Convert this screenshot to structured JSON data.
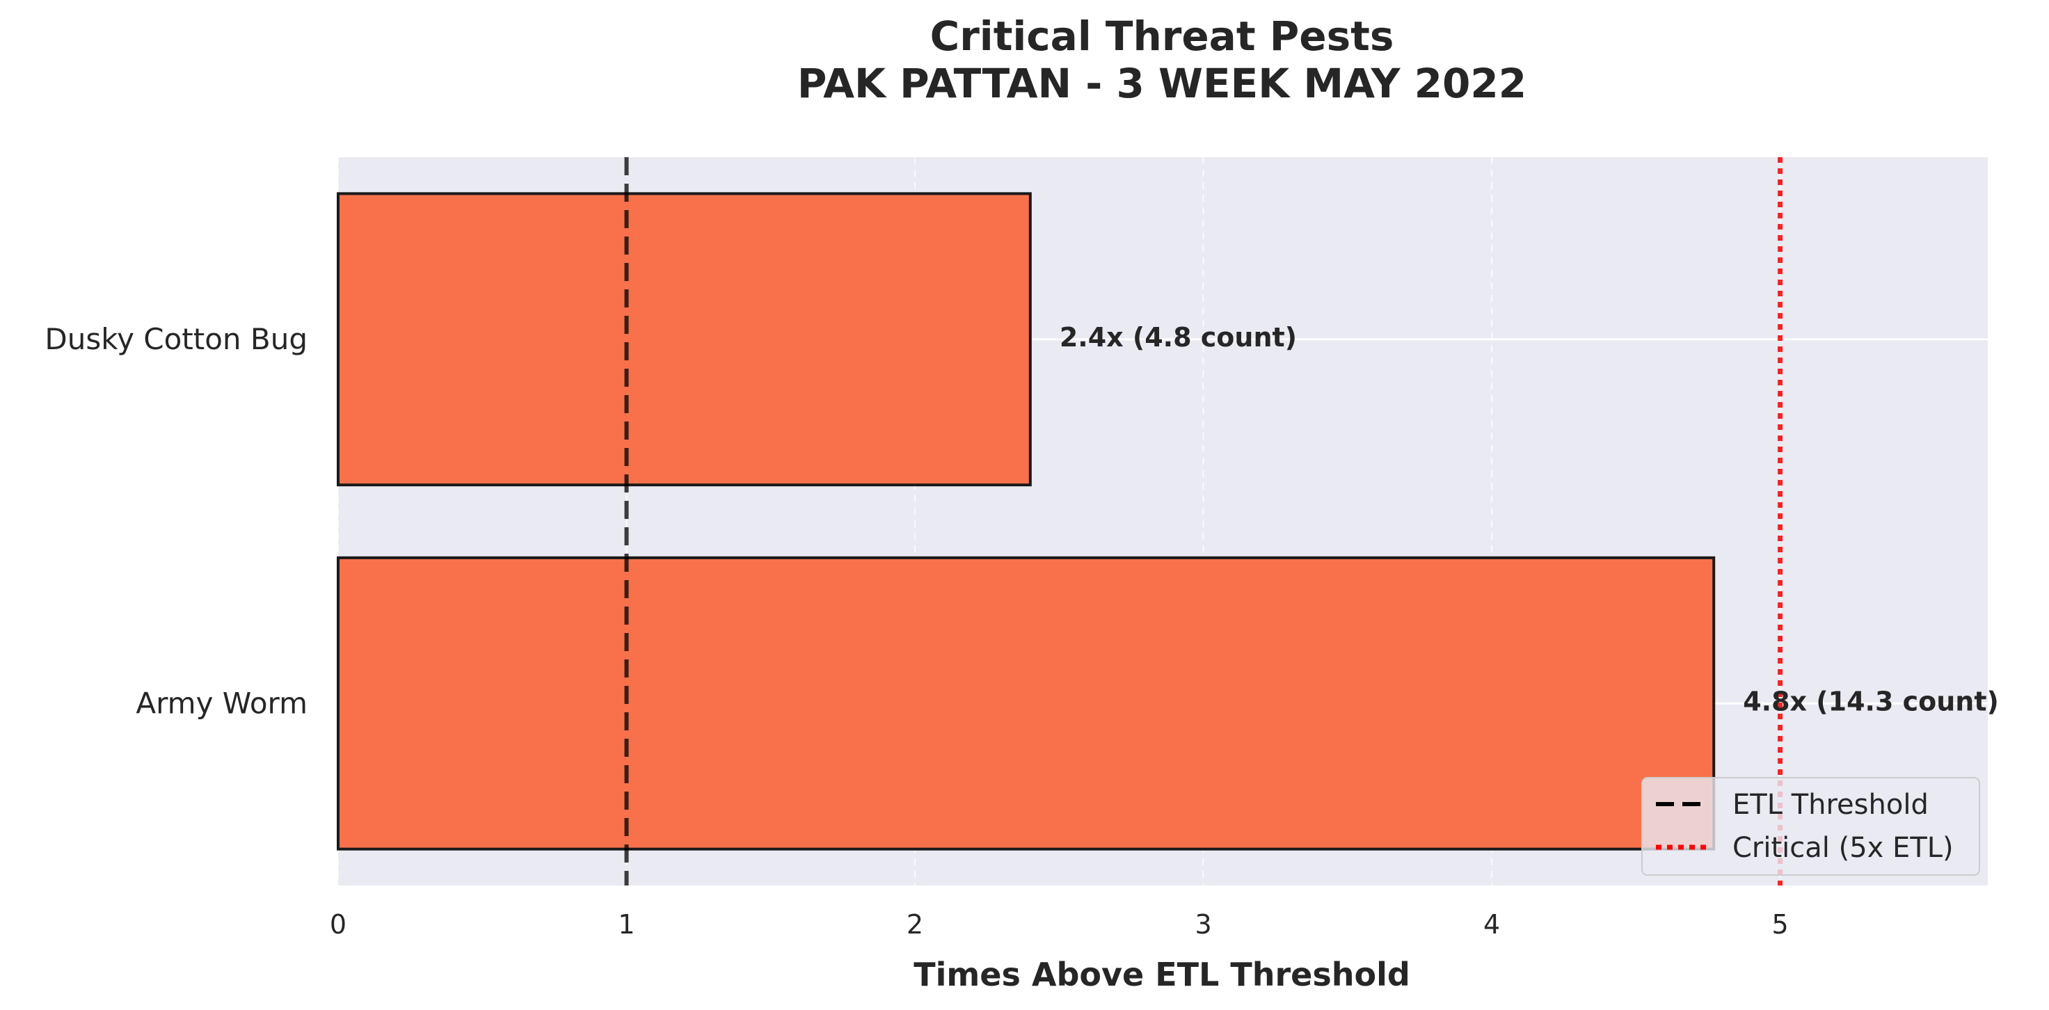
{
  "chart_data": {
    "type": "bar",
    "orientation": "horizontal",
    "title": [
      "Critical Threat Pests",
      "PAK PATTAN - 3 WEEK MAY 2022"
    ],
    "xlabel": "Times Above ETL Threshold",
    "ylabel": "",
    "xlim": [
      0,
      5.72
    ],
    "xticks": [
      0,
      1,
      2,
      3,
      4,
      5
    ],
    "categories": [
      "Dusky Cotton Bug",
      "Army Worm"
    ],
    "values": [
      2.4,
      4.77
    ],
    "bar_labels": [
      "2.4x  (4.8 count)",
      "4.8x  (14.3 count)"
    ],
    "bar_color": "#f96a41",
    "bar_edge_color": "#1a1a1a",
    "background_color": "#eaeaf2",
    "grid": true,
    "reference_lines": [
      {
        "name": "ETL Threshold",
        "x": 1,
        "style": "dashed",
        "color": "#000000"
      },
      {
        "name": "Critical (5x ETL)",
        "x": 5,
        "style": "dotted",
        "color": "#ff0000"
      }
    ],
    "legend": {
      "placement": "lower-right",
      "entries": [
        "ETL Threshold",
        "Critical (5x ETL)"
      ]
    }
  }
}
